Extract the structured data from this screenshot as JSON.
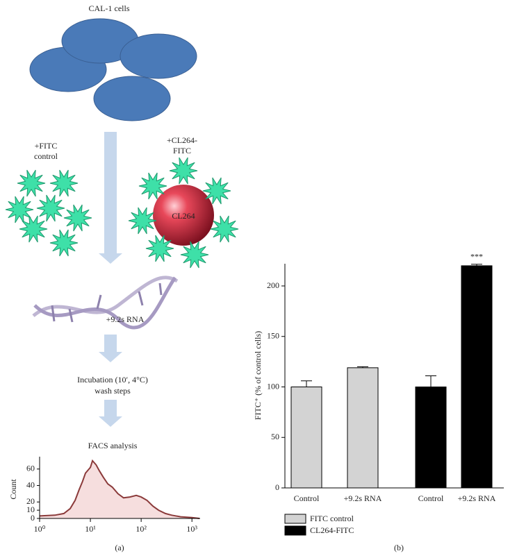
{
  "diagram": {
    "cells_label": "CAL-1 cells",
    "fitc_label": [
      "+FITC",
      "control"
    ],
    "cl264_label": [
      "+CL264-",
      "FITC"
    ],
    "bead_label": "CL264",
    "rna_label": "+9.2s RNA",
    "incubation_label": [
      "Incubation (10′, 4°C)",
      "wash steps"
    ],
    "facs_label": "FACS analysis",
    "panel_a": "(a)",
    "panel_b": "(b)"
  },
  "chart_data": [
    {
      "type": "line",
      "ylabel": "Count",
      "xscale": "log",
      "x": [
        1,
        2,
        3,
        4,
        5,
        6,
        7,
        8,
        10,
        11,
        13,
        15,
        18,
        22,
        27,
        35,
        45,
        60,
        80,
        100,
        130,
        170,
        220,
        300,
        400,
        600,
        1000,
        1400
      ],
      "values": [
        3,
        4,
        6,
        12,
        22,
        35,
        45,
        55,
        62,
        70,
        65,
        58,
        50,
        42,
        38,
        30,
        25,
        26,
        28,
        26,
        22,
        15,
        10,
        6,
        4,
        2,
        1,
        0
      ],
      "color": "#8b3a3a",
      "fill": "#f6dede",
      "xlim": [
        1,
        1450
      ],
      "ylim": [
        0,
        75
      ],
      "xticks": [
        {
          "value": 1,
          "label": "10⁰"
        },
        {
          "value": 10,
          "label": "10¹"
        },
        {
          "value": 100,
          "label": "10²"
        },
        {
          "value": 1000,
          "label": "10³"
        }
      ],
      "yticks": [
        0,
        10,
        20,
        40,
        60
      ]
    },
    {
      "type": "bar",
      "ylabel": "FITC⁺ (% of control cells)",
      "categories": [
        "Control",
        "+9.2s RNA",
        "Control",
        "+9.2s RNA"
      ],
      "series": [
        {
          "name": "FITC control",
          "color": "#d3d3d3",
          "values": [
            100,
            119,
            null,
            null
          ],
          "errors": [
            6,
            1,
            null,
            null
          ]
        },
        {
          "name": "CL264-FITC",
          "color": "#000000",
          "values": [
            null,
            null,
            100,
            220
          ],
          "errors": [
            null,
            null,
            11,
            1.5
          ]
        }
      ],
      "annotation": "***",
      "ylim": [
        0,
        222
      ],
      "yticks": [
        0,
        50,
        100,
        150,
        200
      ],
      "legend": "bottom"
    }
  ]
}
